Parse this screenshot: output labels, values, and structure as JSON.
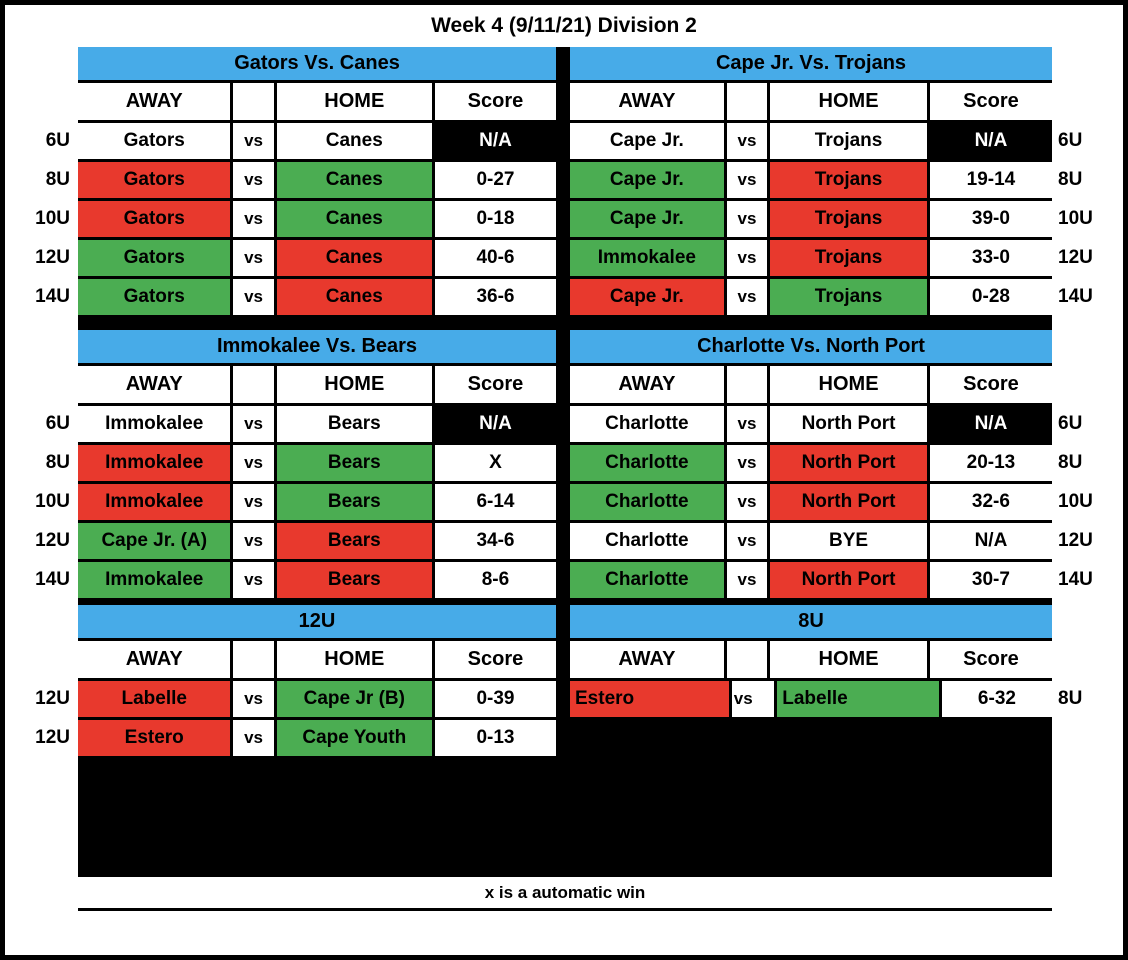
{
  "title": "Week 4 (9/11/21) Division 2",
  "footer_note": "x is a automatic win",
  "colors": {
    "win_green": "#4BAD52",
    "loss_red": "#E8392D",
    "header_blue": "#47ABE8",
    "na_black": "#000000",
    "text": "#000000",
    "background": "#FFFFFF"
  },
  "column_headers": {
    "away": "AWAY",
    "home": "HOME",
    "score": "Score"
  },
  "sections": [
    {
      "title": "Gators Vs. Canes",
      "rows": [
        {
          "label": "6U",
          "away": "Gators",
          "away_result": "none",
          "vs": "vs",
          "home": "Canes",
          "home_result": "none",
          "score": "N/A",
          "score_variant": "na"
        },
        {
          "label": "8U",
          "away": "Gators",
          "away_result": "loss",
          "vs": "vs",
          "home": "Canes",
          "home_result": "win",
          "score": "0-27",
          "score_variant": "normal"
        },
        {
          "label": "10U",
          "away": "Gators",
          "away_result": "loss",
          "vs": "vs",
          "home": "Canes",
          "home_result": "win",
          "score": "0-18",
          "score_variant": "normal"
        },
        {
          "label": "12U",
          "away": "Gators",
          "away_result": "win",
          "vs": "vs",
          "home": "Canes",
          "home_result": "loss",
          "score": "40-6",
          "score_variant": "normal"
        },
        {
          "label": "14U",
          "away": "Gators",
          "away_result": "win",
          "vs": "vs",
          "home": "Canes",
          "home_result": "loss",
          "score": "36-6",
          "score_variant": "normal"
        }
      ]
    },
    {
      "title": "Cape Jr. Vs. Trojans",
      "rows": [
        {
          "label": "6U",
          "away": "Cape Jr.",
          "away_result": "none",
          "vs": "vs",
          "home": "Trojans",
          "home_result": "none",
          "score": "N/A",
          "score_variant": "na"
        },
        {
          "label": "8U",
          "away": "Cape Jr.",
          "away_result": "win",
          "vs": "vs",
          "home": "Trojans",
          "home_result": "loss",
          "score": "19-14",
          "score_variant": "normal"
        },
        {
          "label": "10U",
          "away": "Cape Jr.",
          "away_result": "win",
          "vs": "vs",
          "home": "Trojans",
          "home_result": "loss",
          "score": "39-0",
          "score_variant": "normal"
        },
        {
          "label": "12U",
          "away": "Immokalee",
          "away_result": "win",
          "vs": "vs",
          "home": "Trojans",
          "home_result": "loss",
          "score": "33-0",
          "score_variant": "normal"
        },
        {
          "label": "14U",
          "away": "Cape Jr.",
          "away_result": "loss",
          "vs": "vs",
          "home": "Trojans",
          "home_result": "win",
          "score": "0-28",
          "score_variant": "normal"
        }
      ]
    },
    {
      "title": "Immokalee Vs. Bears",
      "rows": [
        {
          "label": "6U",
          "away": "Immokalee",
          "away_result": "none",
          "vs": "vs",
          "home": "Bears",
          "home_result": "none",
          "score": "N/A",
          "score_variant": "na"
        },
        {
          "label": "8U",
          "away": "Immokalee",
          "away_result": "loss",
          "vs": "vs",
          "home": "Bears",
          "home_result": "win",
          "score": "X",
          "score_variant": "normal"
        },
        {
          "label": "10U",
          "away": "Immokalee",
          "away_result": "loss",
          "vs": "vs",
          "home": "Bears",
          "home_result": "win",
          "score": "6-14",
          "score_variant": "normal"
        },
        {
          "label": "12U",
          "away": "Cape Jr. (A)",
          "away_result": "win",
          "vs": "vs",
          "home": "Bears",
          "home_result": "loss",
          "score": "34-6",
          "score_variant": "normal"
        },
        {
          "label": "14U",
          "away": "Immokalee",
          "away_result": "win",
          "vs": "vs",
          "home": "Bears",
          "home_result": "loss",
          "score": "8-6",
          "score_variant": "normal"
        }
      ]
    },
    {
      "title": "Charlotte Vs. North Port",
      "rows": [
        {
          "label": "6U",
          "away": "Charlotte",
          "away_result": "none",
          "vs": "vs",
          "home": "North Port",
          "home_result": "none",
          "score": "N/A",
          "score_variant": "na"
        },
        {
          "label": "8U",
          "away": "Charlotte",
          "away_result": "win",
          "vs": "vs",
          "home": "North Port",
          "home_result": "loss",
          "score": "20-13",
          "score_variant": "normal"
        },
        {
          "label": "10U",
          "away": "Charlotte",
          "away_result": "win",
          "vs": "vs",
          "home": "North Port",
          "home_result": "loss",
          "score": "32-6",
          "score_variant": "normal"
        },
        {
          "label": "12U",
          "away": "Charlotte",
          "away_result": "none",
          "vs": "vs",
          "home": "BYE",
          "home_result": "none",
          "score": "N/A",
          "score_variant": "normal"
        },
        {
          "label": "14U",
          "away": "Charlotte",
          "away_result": "win",
          "vs": "vs",
          "home": "North Port",
          "home_result": "loss",
          "score": "30-7",
          "score_variant": "normal"
        }
      ]
    },
    {
      "title": "12U",
      "rows": [
        {
          "label": "12U",
          "away": "Labelle",
          "away_result": "loss",
          "vs": "vs",
          "home": "Cape Jr (B)",
          "home_result": "win",
          "score": "0-39",
          "score_variant": "normal"
        },
        {
          "label": "12U",
          "away": "Estero",
          "away_result": "loss",
          "vs": "vs",
          "home": "Cape Youth",
          "home_result": "win",
          "score": "0-13",
          "score_variant": "normal"
        }
      ]
    },
    {
      "title": "8U",
      "rows": [
        {
          "label": "8U",
          "away": "Estero",
          "away_result": "loss",
          "vs": "vs",
          "home": "Labelle",
          "home_result": "win",
          "score": "6-32",
          "score_variant": "normal"
        }
      ]
    }
  ]
}
